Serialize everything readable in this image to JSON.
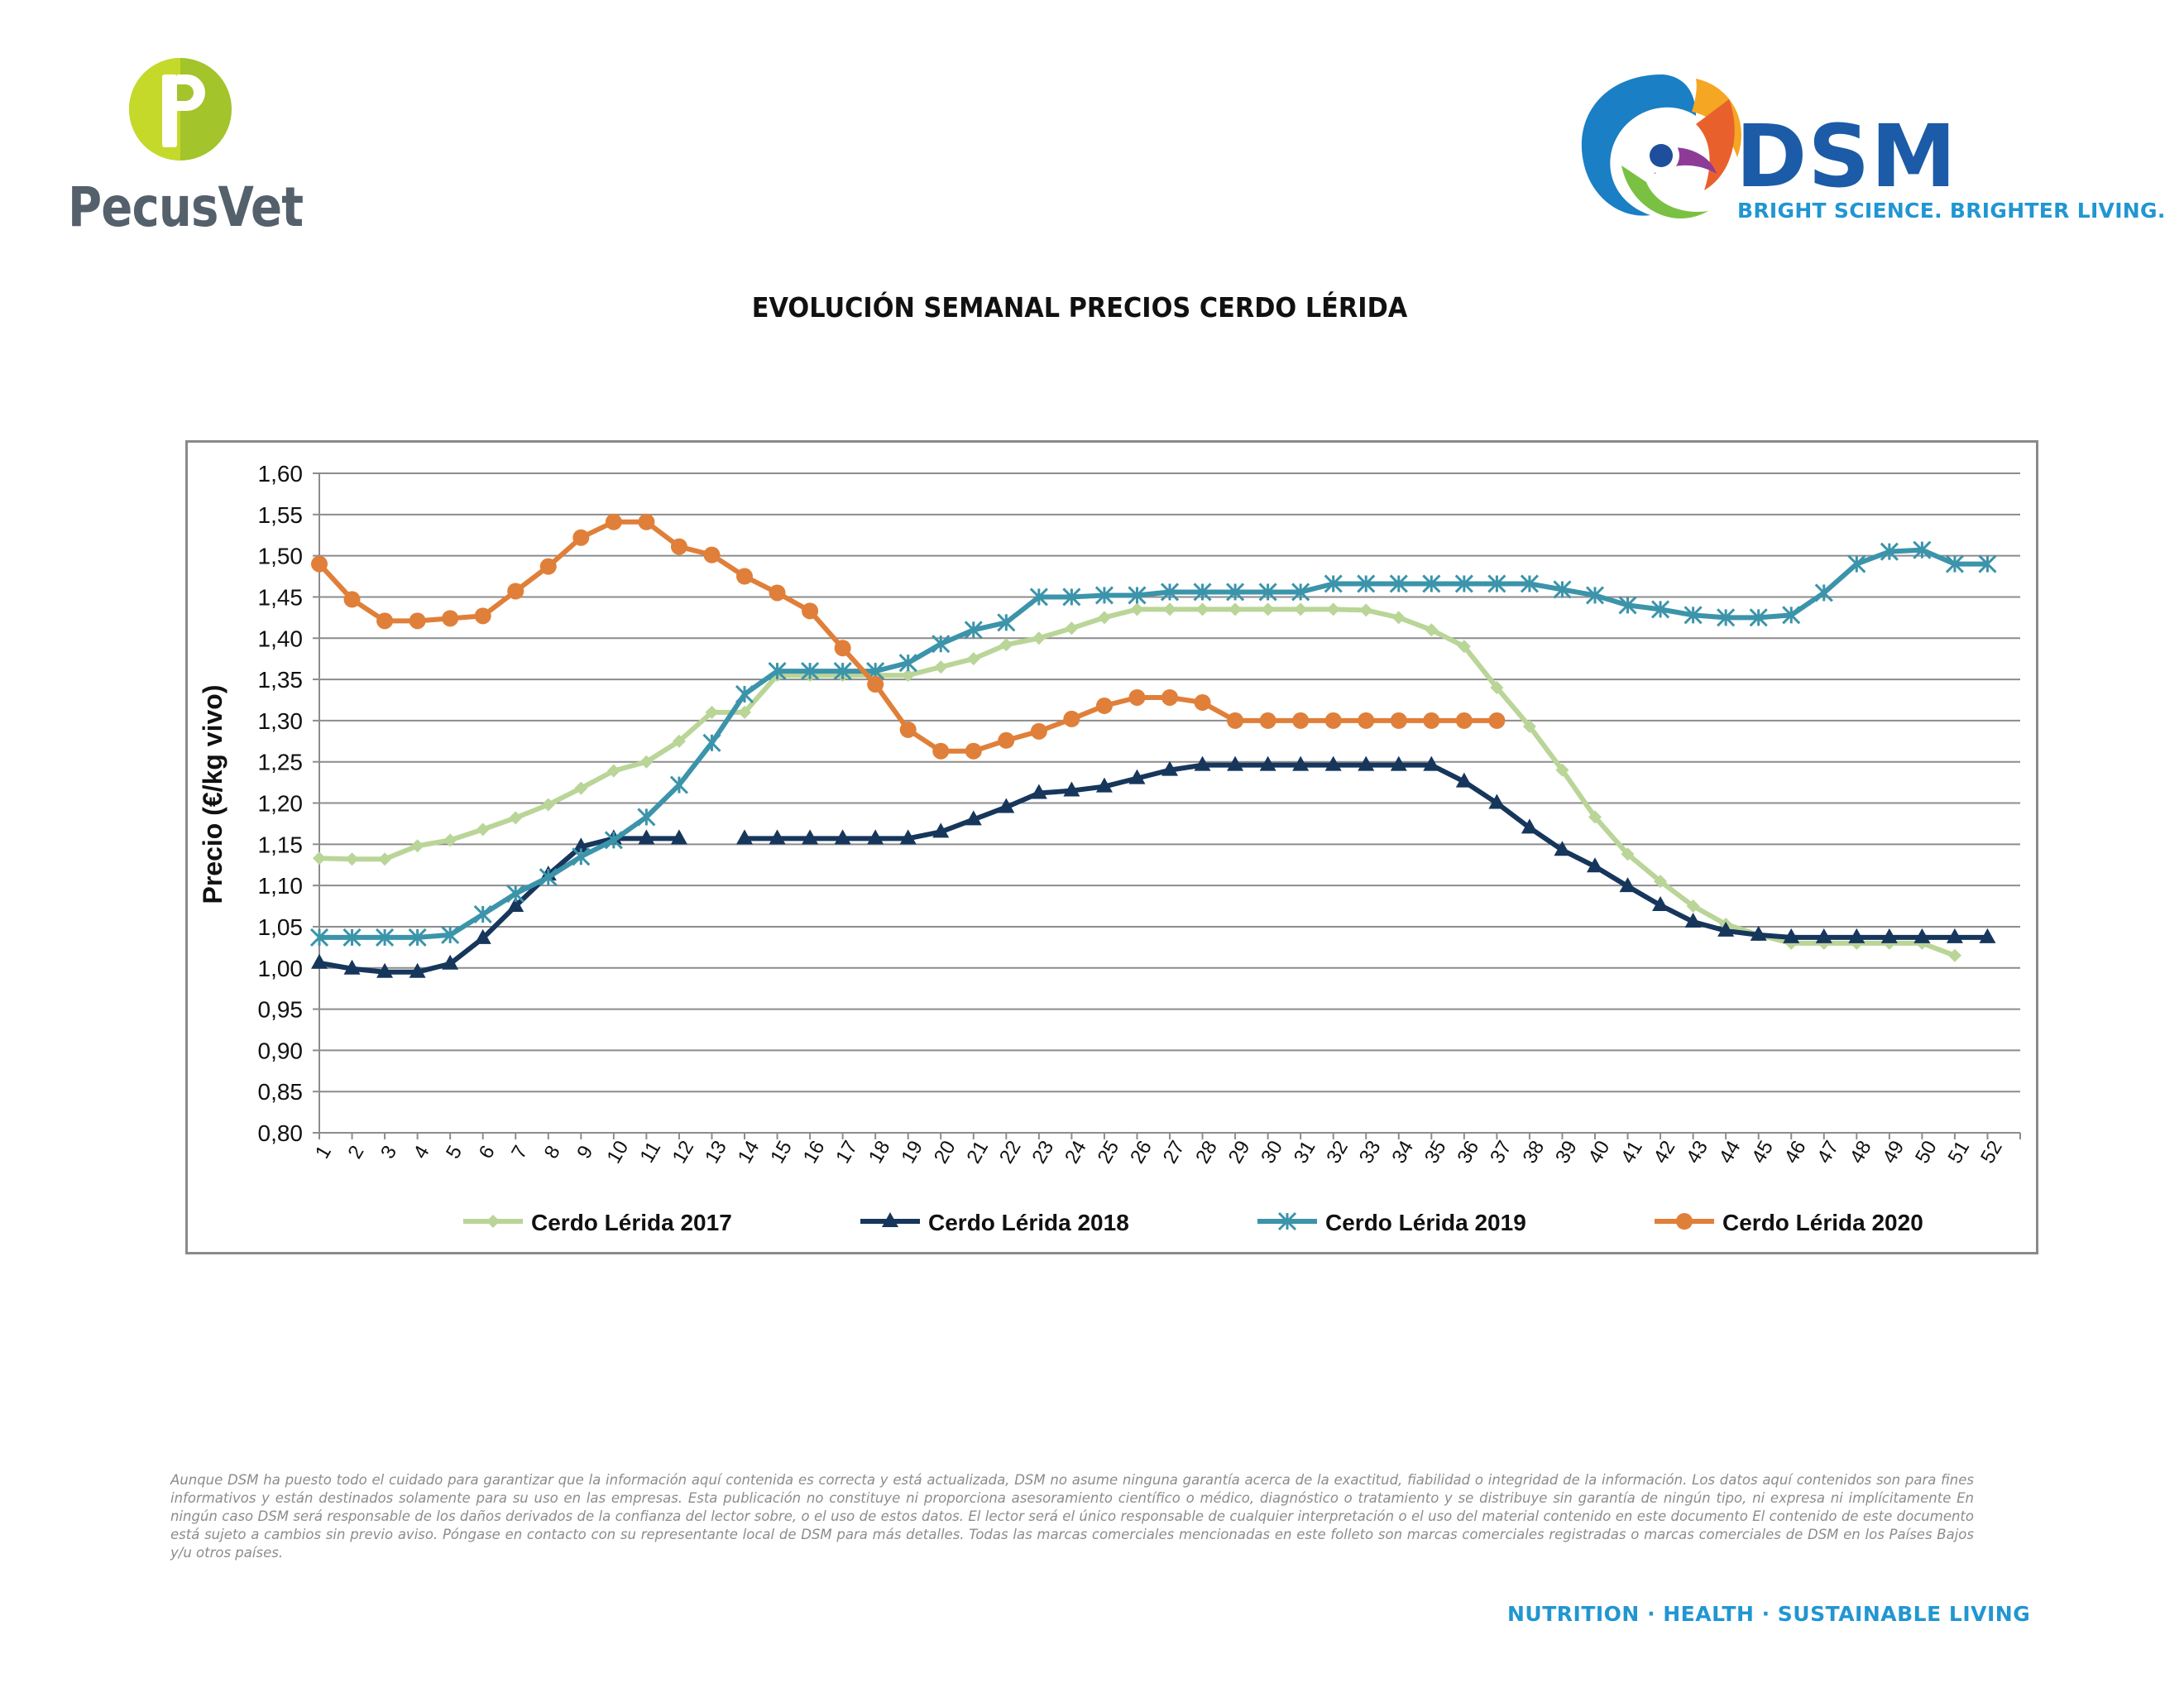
{
  "header": {
    "left_logo_text": "PecusVet",
    "right_logo_text": "DSM",
    "right_logo_tagline": "BRIGHT SCIENCE. BRIGHTER LIVING."
  },
  "title": "EVOLUCIÓN SEMANAL PRECIOS CERDO LÉRIDA",
  "chart_data": {
    "type": "line",
    "title": "EVOLUCIÓN SEMANAL PRECIOS CERDO LÉRIDA",
    "xlabel": "",
    "ylabel": "Precio (€/kg vivo)",
    "x": [
      1,
      2,
      3,
      4,
      5,
      6,
      7,
      8,
      9,
      10,
      11,
      12,
      13,
      14,
      15,
      16,
      17,
      18,
      19,
      20,
      21,
      22,
      23,
      24,
      25,
      26,
      27,
      28,
      29,
      30,
      31,
      32,
      33,
      34,
      35,
      36,
      37,
      38,
      39,
      40,
      41,
      42,
      43,
      44,
      45,
      46,
      47,
      48,
      49,
      50,
      51,
      52
    ],
    "ylim": [
      0.8,
      1.6
    ],
    "yticks": [
      "0,80",
      "0,85",
      "0,90",
      "0,95",
      "1,00",
      "1,05",
      "1,10",
      "1,15",
      "1,20",
      "1,25",
      "1,30",
      "1,35",
      "1,40",
      "1,45",
      "1,50",
      "1,55",
      "1,60"
    ],
    "grid": true,
    "legend_position": "bottom",
    "series": [
      {
        "name": "Cerdo Lérida 2017",
        "color": "#b9d597",
        "marker": "diamond",
        "values": [
          1.133,
          1.132,
          1.132,
          1.148,
          1.155,
          1.168,
          1.182,
          1.198,
          1.218,
          1.239,
          1.25,
          1.275,
          1.31,
          1.31,
          1.355,
          1.355,
          1.355,
          1.355,
          1.355,
          1.365,
          1.375,
          1.392,
          1.4,
          1.412,
          1.425,
          1.435,
          1.435,
          1.435,
          1.435,
          1.435,
          1.435,
          1.435,
          1.434,
          1.425,
          1.41,
          1.39,
          1.34,
          1.293,
          1.24,
          1.183,
          1.138,
          1.105,
          1.075,
          1.053,
          1.04,
          1.03,
          1.03,
          1.03,
          1.03,
          1.03,
          1.015,
          null
        ]
      },
      {
        "name": "Cerdo Lérida 2018",
        "color": "#16365c",
        "marker": "triangle",
        "values": [
          1.006,
          0.999,
          0.995,
          0.995,
          1.005,
          1.036,
          1.075,
          1.113,
          1.147,
          1.157,
          1.157,
          1.157,
          null,
          1.157,
          1.157,
          1.157,
          1.157,
          1.157,
          1.157,
          1.165,
          1.18,
          1.195,
          1.212,
          1.215,
          1.22,
          1.23,
          1.24,
          1.246,
          1.246,
          1.246,
          1.246,
          1.246,
          1.246,
          1.246,
          1.246,
          1.226,
          1.2,
          1.17,
          1.143,
          1.123,
          1.099,
          1.076,
          1.056,
          1.045,
          1.04,
          1.037,
          1.037,
          1.037,
          1.037,
          1.037,
          1.037,
          1.037
        ]
      },
      {
        "name": "Cerdo Lérida 2019",
        "color": "#3b94aa",
        "marker": "star",
        "values": [
          1.037,
          1.037,
          1.037,
          1.037,
          1.04,
          1.065,
          1.09,
          1.11,
          1.135,
          1.155,
          1.183,
          1.222,
          1.273,
          1.332,
          1.36,
          1.36,
          1.36,
          1.36,
          1.37,
          1.393,
          1.41,
          1.419,
          1.45,
          1.45,
          1.452,
          1.452,
          1.456,
          1.456,
          1.456,
          1.456,
          1.456,
          1.466,
          1.466,
          1.466,
          1.466,
          1.466,
          1.466,
          1.466,
          1.459,
          1.452,
          1.44,
          1.435,
          1.428,
          1.425,
          1.425,
          1.428,
          1.455,
          1.49,
          1.505,
          1.507,
          1.49,
          1.49
        ]
      },
      {
        "name": "Cerdo Lérida 2020",
        "color": "#e07f39",
        "marker": "circle",
        "values": [
          1.49,
          1.447,
          1.421,
          1.421,
          1.424,
          1.427,
          1.457,
          1.487,
          1.522,
          1.541,
          1.541,
          1.511,
          1.501,
          1.475,
          1.455,
          1.433,
          1.388,
          1.344,
          1.289,
          1.263,
          1.263,
          1.276,
          1.287,
          1.302,
          1.318,
          1.328,
          1.328,
          1.322,
          1.3,
          1.3,
          1.3,
          1.3,
          1.3,
          1.3,
          1.3,
          1.3,
          1.3,
          null,
          null,
          null,
          null,
          null,
          null,
          null,
          null,
          null,
          null,
          null,
          null,
          null,
          null,
          null
        ]
      }
    ]
  },
  "disclaimer": "Aunque DSM ha puesto todo el cuidado para garantizar que la información aquí contenida es correcta y está actualizada, DSM no asume ninguna garantía acerca de la exactitud, fiabilidad o integridad de la información. Los datos aquí contenidos son para fines informativos y están destinados solamente para su uso en las empresas. Esta publicación no constituye ni proporciona asesoramiento científico o médico, diagnóstico o tratamiento y se distribuye sin garantía de ningún tipo, ni expresa ni implícitamente En ningún caso DSM será responsable de los daños derivados de la confianza del lector sobre, o el uso de estos datos. El lector será el único responsable de cualquier interpretación o el uso del material contenido en este documento El contenido de este documento está sujeto a cambios sin previo aviso. Póngase en contacto con su representante local de DSM para más detalles. Todas las marcas comerciales mencionadas en este folleto son marcas comerciales registradas o marcas comerciales de DSM en los Países Bajos y/u otros países.",
  "footer": "NUTRITION · HEALTH · SUSTAINABLE LIVING"
}
